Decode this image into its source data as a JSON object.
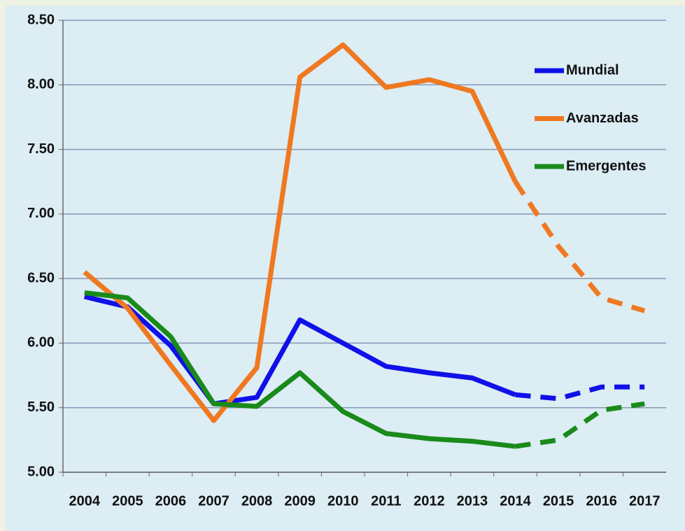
{
  "chart_data": {
    "type": "line",
    "categories": [
      "2004",
      "2005",
      "2006",
      "2007",
      "2008",
      "2009",
      "2010",
      "2011",
      "2012",
      "2013",
      "2014",
      "2015",
      "2016",
      "2017"
    ],
    "series": [
      {
        "name": "Mundial",
        "color": "#1010e8",
        "values": [
          6.36,
          6.28,
          5.98,
          5.53,
          5.58,
          6.18,
          6.0,
          5.82,
          5.77,
          5.73,
          5.6,
          5.57,
          5.66,
          5.66
        ]
      },
      {
        "name": "Avanzadas",
        "color": "#f07820",
        "values": [
          6.55,
          6.27,
          5.83,
          5.4,
          5.81,
          8.06,
          8.31,
          7.98,
          8.04,
          7.95,
          7.25,
          6.75,
          6.35,
          6.25
        ]
      },
      {
        "name": "Emergentes",
        "color": "#1a8a1a",
        "values": [
          6.39,
          6.35,
          6.05,
          5.53,
          5.51,
          5.77,
          5.47,
          5.3,
          5.26,
          5.24,
          5.2,
          5.25,
          5.48,
          5.53
        ]
      }
    ],
    "dashed_from": "2014",
    "ylim": [
      5.0,
      8.5
    ],
    "yticks": [
      {
        "value": 5.0,
        "label": "5.00"
      },
      {
        "value": 5.5,
        "label": "5.50"
      },
      {
        "value": 6.0,
        "label": "6.00"
      },
      {
        "value": 6.5,
        "label": "6.50"
      },
      {
        "value": 7.0,
        "label": "7.00"
      },
      {
        "value": 7.5,
        "label": "7.50"
      },
      {
        "value": 8.0,
        "label": "8.00"
      },
      {
        "value": 8.5,
        "label": "8.50"
      }
    ],
    "grid": true,
    "legend": "upper right"
  }
}
